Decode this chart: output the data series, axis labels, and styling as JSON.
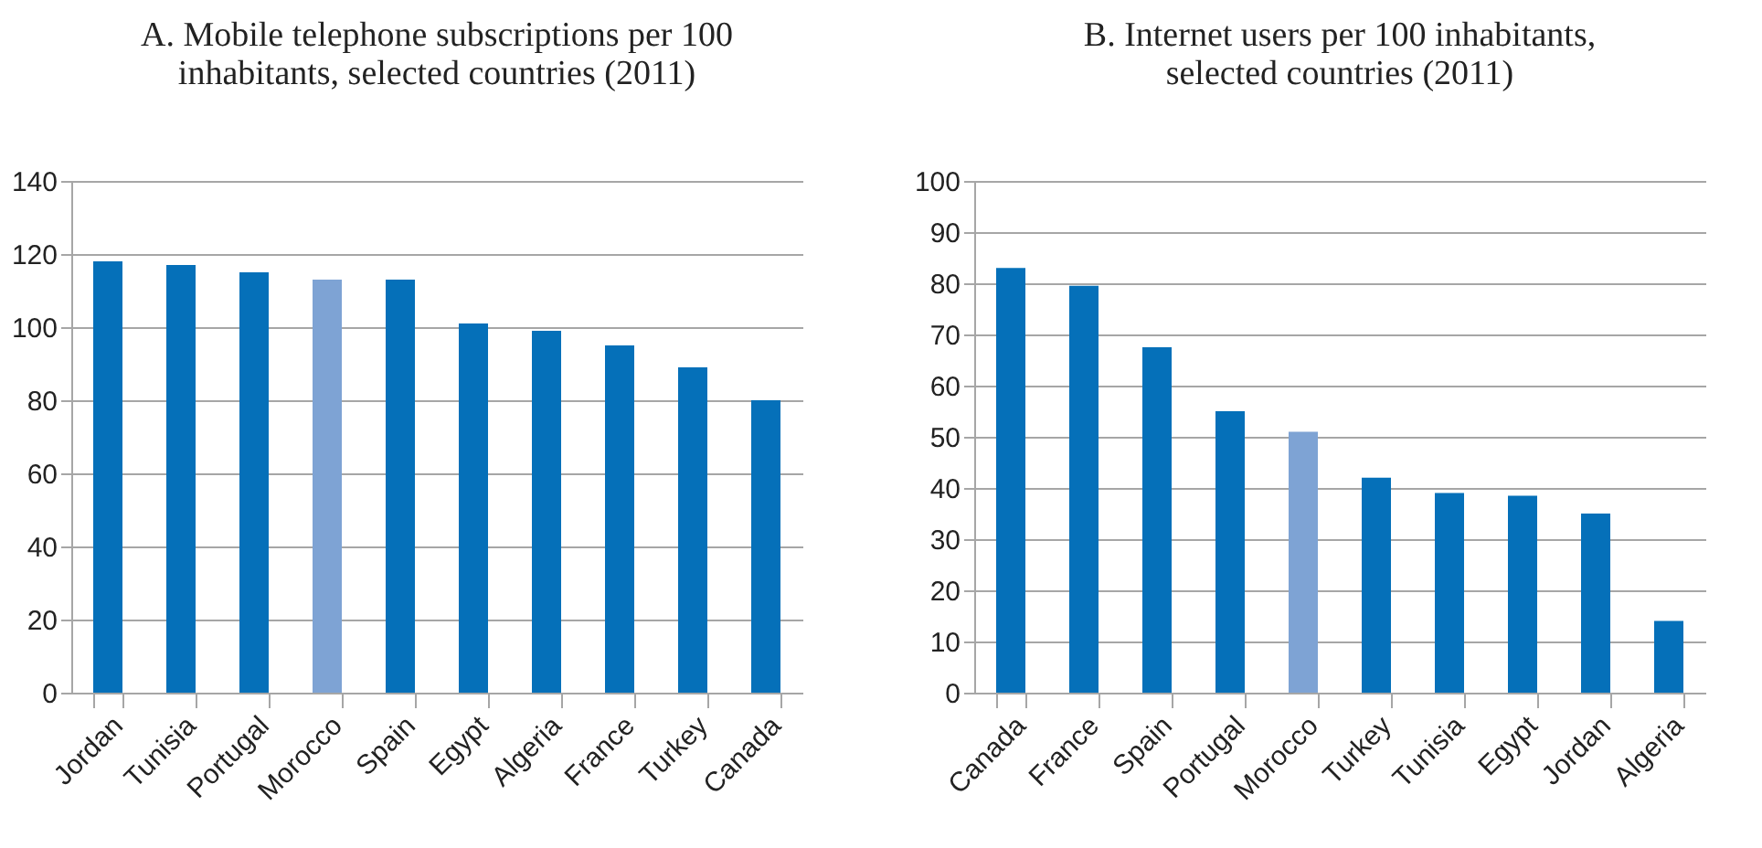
{
  "chart_data": [
    {
      "type": "bar",
      "title": "A. Mobile telephone subscriptions per 100 inhabitants, selected countries (2011)",
      "categories": [
        "Jordan",
        "Tunisia",
        "Portugal",
        "Morocco",
        "Spain",
        "Egypt",
        "Algeria",
        "France",
        "Turkey",
        "Canada"
      ],
      "values": [
        118,
        117,
        115,
        113,
        113,
        101,
        99,
        95,
        89,
        80
      ],
      "colors": [
        "#0570b9",
        "#0570b9",
        "#0570b9",
        "#7ea3d4",
        "#0570b9",
        "#0570b9",
        "#0570b9",
        "#0570b9",
        "#0570b9",
        "#0570b9"
      ],
      "ylim": [
        0,
        140
      ],
      "yticks": [
        0,
        20,
        40,
        60,
        80,
        100,
        120,
        140
      ],
      "grid": "y"
    },
    {
      "type": "bar",
      "title": "B. Internet users per 100 inhabitants, selected countries (2011)",
      "categories": [
        "Canada",
        "France",
        "Spain",
        "Portugal",
        "Morocco",
        "Turkey",
        "Tunisia",
        "Egypt",
        "Jordan",
        "Algeria"
      ],
      "values": [
        83,
        79.5,
        67.5,
        55,
        51,
        42,
        39,
        38.5,
        35,
        14
      ],
      "colors": [
        "#0570b9",
        "#0570b9",
        "#0570b9",
        "#0570b9",
        "#7ea3d4",
        "#0570b9",
        "#0570b9",
        "#0570b9",
        "#0570b9",
        "#0570b9"
      ],
      "ylim": [
        0,
        100
      ],
      "yticks": [
        0,
        10,
        20,
        30,
        40,
        50,
        60,
        70,
        80,
        90,
        100
      ],
      "grid": "y"
    }
  ]
}
